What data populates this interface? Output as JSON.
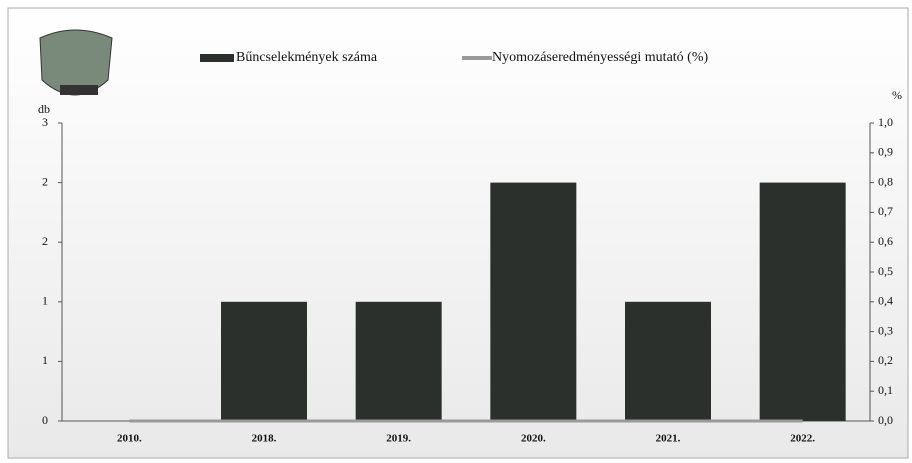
{
  "chart_data": {
    "type": "bar_line",
    "categories": [
      "2010.",
      "2018.",
      "2019.",
      "2020.",
      "2021.",
      "2022."
    ],
    "series": [
      {
        "name": "Bűncselekmények száma",
        "color": "#2b302d",
        "values": [
          0,
          1,
          1,
          2,
          1,
          2
        ]
      },
      {
        "name": "Nyomozáseredményességi mutató (%)",
        "color": "#9a9a9a",
        "axis": "y2",
        "values": [
          0,
          0,
          0,
          0,
          0,
          0
        ]
      }
    ],
    "y_label": "db",
    "y2_label": "%",
    "ylim": [
      0,
      2.5
    ],
    "yticks": [
      0,
      {
        "value": 0.5,
        "label": "1"
      },
      1,
      {
        "value": 1.5,
        "label": "2"
      },
      2,
      {
        "value": 2.5,
        "label": "3"
      }
    ],
    "y2lim": [
      0,
      1
    ],
    "y2ticks": [
      {
        "value": 0,
        "label": "0,0"
      },
      {
        "value": 0.1,
        "label": "0,1"
      },
      {
        "value": 0.2,
        "label": "0,2"
      },
      {
        "value": 0.3,
        "label": "0,3"
      },
      {
        "value": 0.4,
        "label": "0,4"
      },
      {
        "value": 0.5,
        "label": "0,5"
      },
      {
        "value": 0.6,
        "label": "0,6"
      },
      {
        "value": 0.7,
        "label": "0,7"
      },
      {
        "value": 0.8,
        "label": "0,8"
      },
      {
        "value": 0.9,
        "label": "0,9"
      },
      {
        "value": 1,
        "label": "1,0"
      }
    ]
  }
}
